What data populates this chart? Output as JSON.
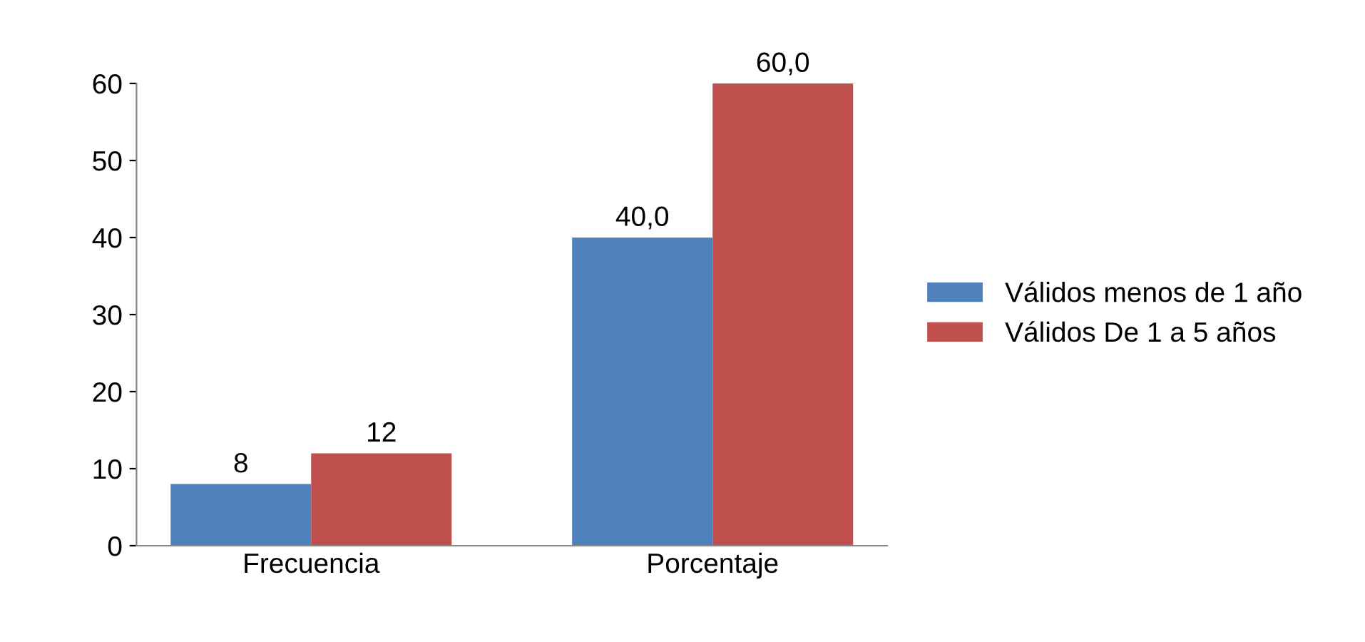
{
  "chart_data": {
    "type": "bar",
    "categories": [
      "Frecuencia",
      "Porcentaje"
    ],
    "series": [
      {
        "name": "Válidos menos de 1 año",
        "color": "#4f81bd",
        "values": [
          8,
          40.0
        ],
        "value_labels": [
          "8",
          "40,0"
        ]
      },
      {
        "name": "Válidos De 1 a 5 años",
        "color": "#c0504d",
        "values": [
          12,
          60.0
        ],
        "value_labels": [
          "12",
          "60,0"
        ]
      }
    ],
    "ylim": [
      0,
      60
    ],
    "yticks": [
      0,
      10,
      20,
      30,
      40,
      50,
      60
    ],
    "grid": false,
    "legend": "right"
  }
}
